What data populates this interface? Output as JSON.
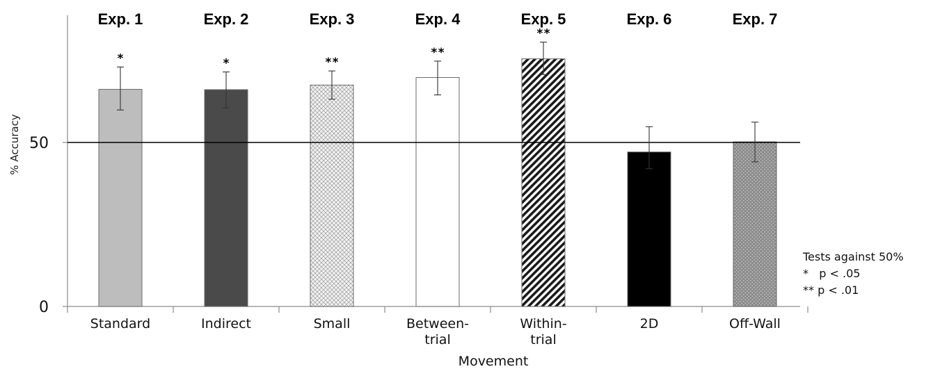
{
  "chart_data": {
    "type": "bar",
    "categories": [
      [
        "Standard"
      ],
      [
        "Indirect"
      ],
      [
        "Small"
      ],
      [
        "Between-",
        "trial"
      ],
      [
        "Within-",
        "trial"
      ],
      [
        "2D"
      ],
      [
        "Off-Wall"
      ]
    ],
    "experiments": [
      "Exp. 1",
      "Exp. 2",
      "Exp. 3",
      "Exp. 4",
      "Exp. 5",
      "Exp. 6",
      "Exp. 7"
    ],
    "values": [
      66.2,
      66.1,
      67.5,
      69.8,
      75.5,
      47.1,
      50.2
    ],
    "error_high": [
      73,
      71.5,
      71.8,
      74.8,
      80.6,
      54.8,
      56.2
    ],
    "error_low": [
      59.9,
      60.5,
      63.2,
      64.5,
      70.7,
      42,
      44.1
    ],
    "significance": [
      "*",
      "*",
      "**",
      "**",
      "**",
      "",
      ""
    ],
    "fills": [
      "light-gray",
      "dark-gray",
      "crosshatch",
      "white",
      "diagonal-stripes",
      "black",
      "dotted-gray"
    ],
    "colors": {
      "light_gray": "#bdbdbd",
      "dark_gray": "#4a4a4a",
      "black": "#000000",
      "white": "#ffffff",
      "dotted_bg": "#8c8c8c"
    },
    "reference_line": 50,
    "ylim": [
      0,
      100
    ],
    "yticks": [
      "0",
      "50"
    ],
    "ytick_values": [
      0,
      50
    ],
    "xlabel": "Movement",
    "ylabel": "% Accuracy",
    "legend": {
      "title": "Tests against 50%",
      "entries": [
        "*   p < .05",
        "** p < .01"
      ]
    }
  }
}
